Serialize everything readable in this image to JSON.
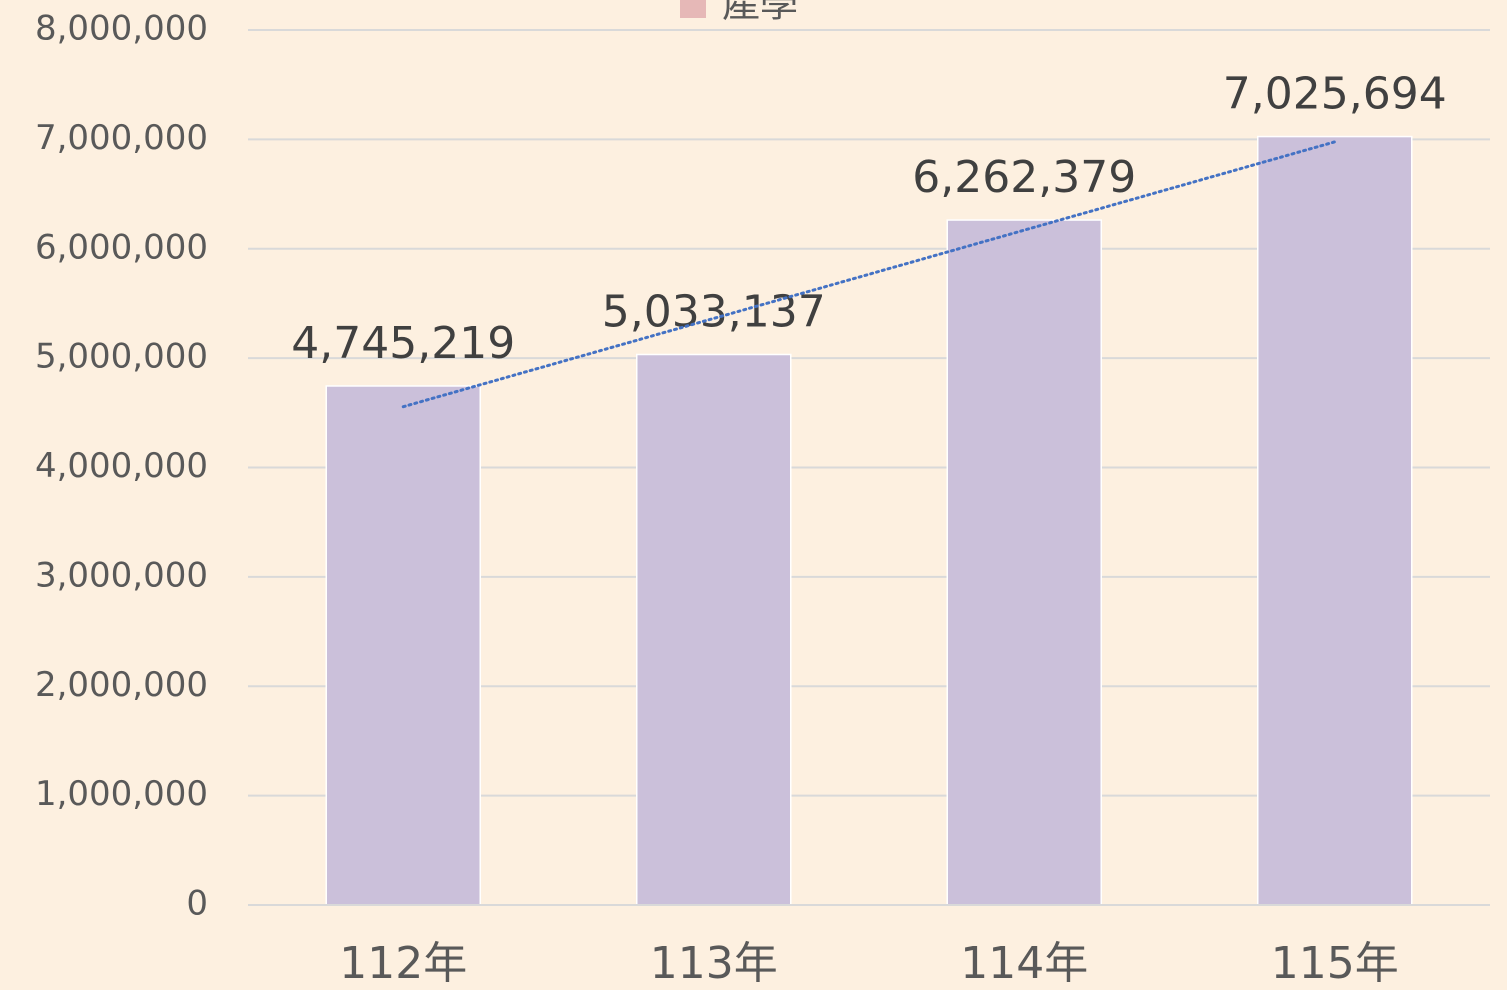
{
  "chart_data": {
    "type": "bar",
    "categories": [
      "112年",
      "113年",
      "114年",
      "115年"
    ],
    "series": [
      {
        "name": "產學",
        "color": "#cbc0da",
        "legend_color": "#e6b8b7",
        "values": [
          4745219,
          5033137,
          6262379,
          7025694
        ],
        "value_labels": [
          "4,745,219",
          "5,033,137",
          "6,262,379",
          "7,025,694"
        ]
      }
    ],
    "ylim": [
      0,
      8000000
    ],
    "yticks": [
      0,
      {
        "value": 1000000,
        "label": "1,000,000"
      },
      {
        "value": 2000000,
        "label": "2,000,000"
      },
      {
        "value": 3000000,
        "label": "3,000,000"
      },
      {
        "value": 4000000,
        "label": "4,000,000"
      },
      {
        "value": 5000000,
        "label": "5,000,000"
      },
      {
        "value": 6000000,
        "label": "6,000,000"
      },
      {
        "value": 7000000,
        "label": "7,000,000"
      },
      {
        "value": 8000000,
        "label": "8,000,000"
      }
    ],
    "grid": true,
    "legend": "top",
    "trendline": "linear"
  }
}
